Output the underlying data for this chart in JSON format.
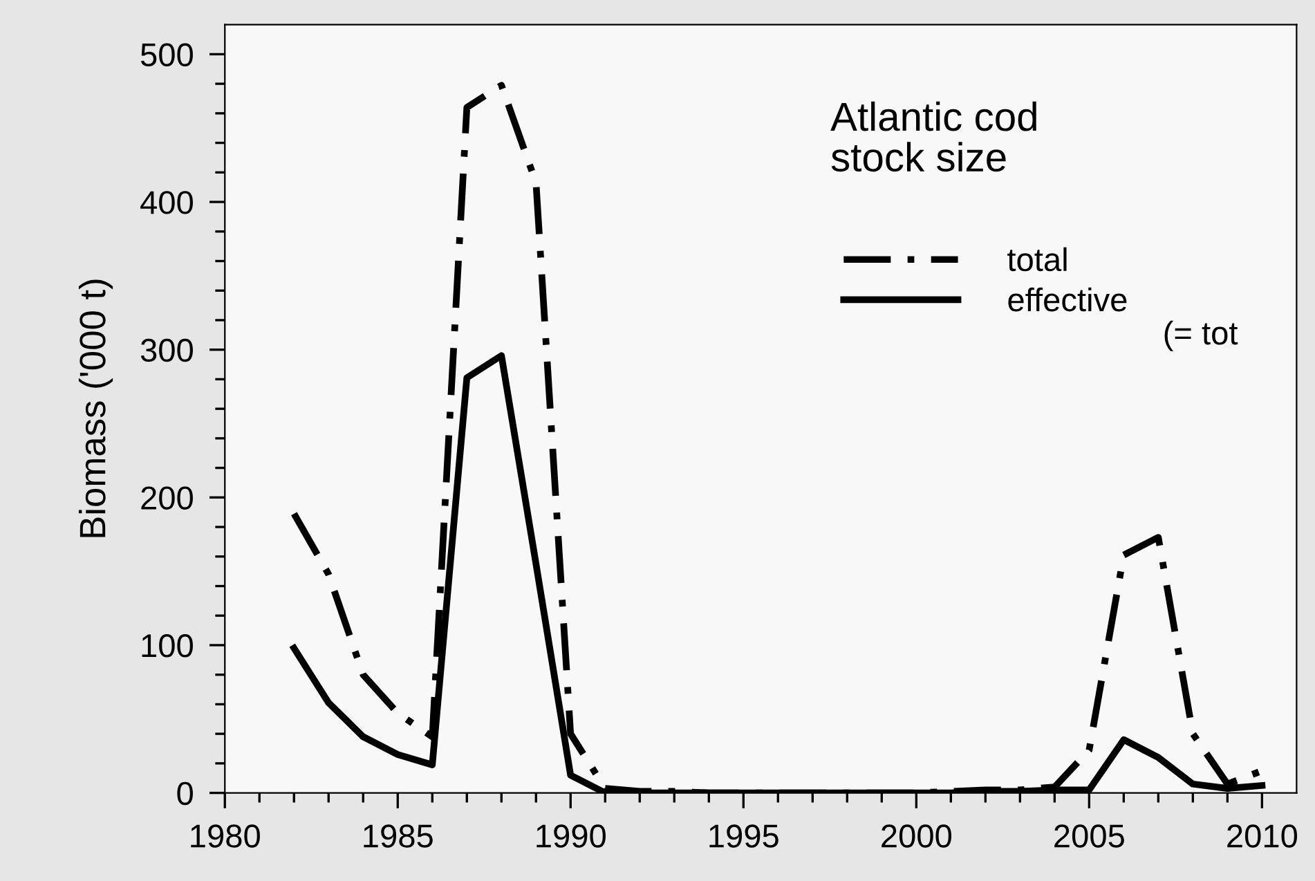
{
  "chart_data": {
    "type": "line",
    "ylabel": "Biomass ('000 t)",
    "annotations": [
      "Atlantic cod\nstock size",
      "(= tot"
    ],
    "x": [
      1982,
      1983,
      1984,
      1985,
      1986,
      1987,
      1988,
      1989,
      1990,
      1991,
      1992,
      1993,
      1994,
      1995,
      1996,
      1997,
      1998,
      1999,
      2000,
      2001,
      2002,
      2003,
      2004,
      2005,
      2006,
      2007,
      2008,
      2009,
      2010
    ],
    "series": [
      {
        "name": "total",
        "color": "#000000",
        "line_style": "dashdot",
        "values": [
          189,
          148,
          80,
          54,
          38,
          464,
          479,
          413,
          40,
          3,
          1,
          1,
          0,
          0,
          0,
          0,
          0,
          0,
          0,
          1,
          2,
          2,
          4,
          29,
          161,
          173,
          40,
          6,
          15
        ]
      },
      {
        "name": "effective",
        "color": "#000000",
        "line_style": "solid",
        "values": [
          98,
          61,
          38,
          26,
          19,
          281,
          296,
          155,
          12,
          0,
          0,
          0,
          0,
          0,
          0,
          0,
          0,
          0,
          0,
          0,
          1,
          1,
          2,
          2,
          36,
          24,
          6,
          3,
          5
        ]
      }
    ],
    "xlim": [
      1980,
      2011
    ],
    "xticks": [
      1980,
      {
        "value": 1981,
        "label": null
      },
      {
        "value": 1982,
        "label": null
      },
      {
        "value": 1983,
        "label": null
      },
      {
        "value": 1984,
        "label": null
      },
      1985,
      {
        "value": 1986,
        "label": null
      },
      {
        "value": 1987,
        "label": null
      },
      {
        "value": 1988,
        "label": null
      },
      {
        "value": 1989,
        "label": null
      },
      1990,
      {
        "value": 1991,
        "label": null
      },
      {
        "value": 1992,
        "label": null
      },
      {
        "value": 1993,
        "label": null
      },
      {
        "value": 1994,
        "label": null
      },
      1995,
      {
        "value": 1996,
        "label": null
      },
      {
        "value": 1997,
        "label": null
      },
      {
        "value": 1998,
        "label": null
      },
      {
        "value": 1999,
        "label": null
      },
      2000,
      {
        "value": 2001,
        "label": null
      },
      {
        "value": 2002,
        "label": null
      },
      {
        "value": 2003,
        "label": null
      },
      {
        "value": 2004,
        "label": null
      },
      2005,
      {
        "value": 2006,
        "label": null
      },
      {
        "value": 2007,
        "label": null
      },
      {
        "value": 2008,
        "label": null
      },
      {
        "value": 2009,
        "label": null
      },
      2010
    ],
    "ylim": [
      0,
      520
    ],
    "yticks": [
      0,
      {
        "value": 20,
        "label": null
      },
      {
        "value": 40,
        "label": null
      },
      {
        "value": 60,
        "label": null
      },
      {
        "value": 80,
        "label": null
      },
      100,
      {
        "value": 120,
        "label": null
      },
      {
        "value": 140,
        "label": null
      },
      {
        "value": 160,
        "label": null
      },
      {
        "value": 180,
        "label": null
      },
      200,
      {
        "value": 220,
        "label": null
      },
      {
        "value": 240,
        "label": null
      },
      {
        "value": 260,
        "label": null
      },
      {
        "value": 280,
        "label": null
      },
      300,
      {
        "value": 320,
        "label": null
      },
      {
        "value": 340,
        "label": null
      },
      {
        "value": 360,
        "label": null
      },
      {
        "value": 380,
        "label": null
      },
      400,
      {
        "value": 420,
        "label": null
      },
      {
        "value": 440,
        "label": null
      },
      {
        "value": 460,
        "label": null
      },
      {
        "value": 480,
        "label": null
      },
      500
    ],
    "grid": false,
    "legend": "top right",
    "marker": "none"
  }
}
